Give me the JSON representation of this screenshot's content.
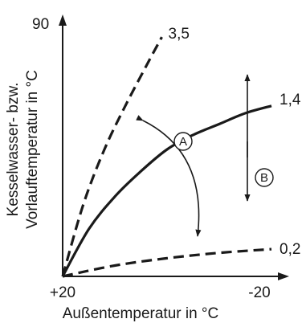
{
  "chart_data": {
    "type": "line",
    "title": "",
    "xlabel": "Außentemperatur in °C",
    "ylabel_line1": "Kesselwasser- bzw.",
    "ylabel_line2": "Vorlauftemperatur in °C",
    "x_tick_labels": {
      "start": "+20",
      "end": "-20"
    },
    "y_tick_labels": {
      "top": "90"
    },
    "xlim": [
      20,
      -20
    ],
    "ylim": [
      20,
      90
    ],
    "grid": false,
    "legend": "none",
    "series": [
      {
        "name": "3,5",
        "style": "dashed",
        "x": [
          20,
          16,
          12,
          8,
          4,
          1
        ],
        "y": [
          20,
          40,
          55,
          67,
          78,
          86
        ]
      },
      {
        "name": "1,4",
        "style": "solid",
        "x": [
          20,
          15,
          10,
          5,
          0,
          -5,
          -10,
          -15,
          -20
        ],
        "y": [
          20,
          33,
          42,
          49,
          55,
          59,
          62,
          65,
          67
        ]
      },
      {
        "name": "0,2",
        "style": "dashed",
        "x": [
          20,
          10,
          0,
          -10,
          -20
        ],
        "y": [
          20,
          23,
          25,
          26.5,
          27.5
        ]
      }
    ],
    "annotations": [
      {
        "label": "A",
        "meaning": "rotate slope"
      },
      {
        "label": "B",
        "meaning": "parallel shift"
      }
    ]
  },
  "colors": {
    "ink": "#1a1a1a",
    "background": "#ffffff"
  }
}
